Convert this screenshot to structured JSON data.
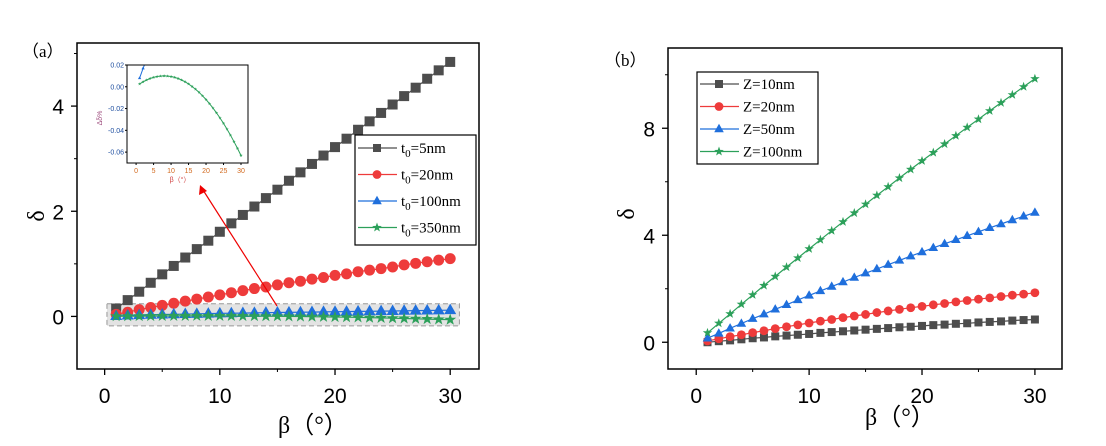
{
  "chart_data": [
    {
      "type": "line",
      "panel_label": "（a）",
      "xlabel": "β（°）",
      "ylabel": "δ",
      "xlim": [
        -2.4,
        32.5
      ],
      "ylim": [
        -1.0,
        5.2
      ],
      "xticks": [
        0,
        10,
        20,
        30
      ],
      "yticks": [
        0,
        2,
        4
      ],
      "grid": false,
      "legend_placement": "right",
      "x": [
        1,
        2,
        3,
        4,
        5,
        6,
        7,
        8,
        9,
        10,
        11,
        12,
        13,
        14,
        15,
        16,
        17,
        18,
        19,
        20,
        21,
        22,
        23,
        24,
        25,
        26,
        27,
        28,
        29,
        30
      ],
      "series": [
        {
          "name": "t0=5nm",
          "name_main": "t",
          "name_sub": "0",
          "name_rest": "=5nm",
          "color": "#4d4d4d",
          "marker": "square",
          "values": [
            0.15,
            0.31,
            0.47,
            0.64,
            0.8,
            0.96,
            1.12,
            1.28,
            1.44,
            1.61,
            1.77,
            1.93,
            2.09,
            2.25,
            2.41,
            2.58,
            2.74,
            2.9,
            3.06,
            3.22,
            3.38,
            3.55,
            3.71,
            3.87,
            4.03,
            4.19,
            4.35,
            4.52,
            4.68,
            4.84
          ]
        },
        {
          "name": "t0=20nm",
          "name_main": "t",
          "name_sub": "0",
          "name_rest": "=20nm",
          "color": "#ee3b3b",
          "marker": "circle",
          "values": [
            0.04,
            0.08,
            0.13,
            0.17,
            0.21,
            0.25,
            0.29,
            0.33,
            0.37,
            0.41,
            0.45,
            0.49,
            0.53,
            0.56,
            0.6,
            0.64,
            0.67,
            0.71,
            0.74,
            0.78,
            0.81,
            0.85,
            0.88,
            0.91,
            0.94,
            0.98,
            1.01,
            1.04,
            1.07,
            1.1
          ]
        },
        {
          "name": "t0=100nm",
          "name_main": "t",
          "name_sub": "0",
          "name_rest": "=100nm",
          "color": "#1f6fdc",
          "marker": "triangle",
          "values": [
            0.008,
            0.017,
            0.025,
            0.032,
            0.037,
            0.041,
            0.045,
            0.049,
            0.053,
            0.057,
            0.061,
            0.064,
            0.067,
            0.071,
            0.074,
            0.077,
            0.08,
            0.083,
            0.086,
            0.089,
            0.092,
            0.095,
            0.098,
            0.101,
            0.104,
            0.107,
            0.11,
            0.113,
            0.116,
            0.119
          ]
        },
        {
          "name": "t0=350nm",
          "name_main": "t",
          "name_sub": "0",
          "name_rest": "=350nm",
          "color": "#2ca05a",
          "marker": "star",
          "values": [
            0.0026,
            0.0046,
            0.0062,
            0.0076,
            0.0086,
            0.0094,
            0.0098,
            0.01,
            0.0098,
            0.0094,
            0.0086,
            0.0076,
            0.0062,
            0.0046,
            0.0026,
            0.0003,
            -0.0022,
            -0.0051,
            -0.0083,
            -0.0117,
            -0.0155,
            -0.0196,
            -0.024,
            -0.0287,
            -0.0336,
            -0.0389,
            -0.0445,
            -0.0504,
            -0.0566,
            -0.0631
          ]
        }
      ],
      "highlight_region": {
        "x": [
          0.2,
          30.8
        ],
        "y": [
          -0.18,
          0.24
        ]
      },
      "inset": {
        "xlabel": "β（°）",
        "ylabel": "Δδ%",
        "xlim": [
          -2.6,
          32
        ],
        "ylim": [
          -0.07,
          0.02
        ],
        "xticks": [
          0,
          5,
          10,
          15,
          20,
          25,
          30
        ],
        "yticks": [
          0.02,
          0.0,
          -0.02,
          -0.04,
          -0.06
        ],
        "ytick_labels": [
          "0.02",
          "0.00",
          "-0.02",
          "-0.04",
          "-0.06"
        ],
        "series_shown": [
          "t0=100nm",
          "t0=350nm"
        ]
      }
    },
    {
      "type": "line",
      "panel_label": "（b）",
      "xlabel": "β（°）",
      "ylabel": "δ",
      "xlim": [
        -2.5,
        32.4
      ],
      "ylim": [
        -1.0,
        11.0
      ],
      "xticks": [
        0,
        10,
        20,
        30
      ],
      "yticks": [
        0,
        4,
        8
      ],
      "grid": false,
      "legend_placement": "top-left",
      "x": [
        1,
        2,
        3,
        4,
        5,
        6,
        7,
        8,
        9,
        10,
        11,
        12,
        13,
        14,
        15,
        16,
        17,
        18,
        19,
        20,
        21,
        22,
        23,
        24,
        25,
        26,
        27,
        28,
        29,
        30
      ],
      "series": [
        {
          "name": "Z=10nm",
          "color": "#4d4d4d",
          "marker": "square",
          "values": [
            0.0,
            0.04,
            0.07,
            0.11,
            0.15,
            0.18,
            0.22,
            0.25,
            0.28,
            0.31,
            0.35,
            0.38,
            0.41,
            0.44,
            0.47,
            0.5,
            0.53,
            0.56,
            0.58,
            0.61,
            0.64,
            0.66,
            0.69,
            0.71,
            0.74,
            0.76,
            0.78,
            0.81,
            0.83,
            0.85
          ]
        },
        {
          "name": "Z=20nm",
          "color": "#ee3b3b",
          "marker": "circle",
          "values": [
            0.05,
            0.13,
            0.21,
            0.28,
            0.36,
            0.43,
            0.51,
            0.58,
            0.65,
            0.72,
            0.79,
            0.85,
            0.92,
            0.98,
            1.04,
            1.11,
            1.17,
            1.23,
            1.29,
            1.34,
            1.4,
            1.45,
            1.51,
            1.56,
            1.61,
            1.66,
            1.71,
            1.76,
            1.8,
            1.85
          ]
        },
        {
          "name": "Z=50nm",
          "color": "#1f6fdc",
          "marker": "triangle",
          "values": [
            0.15,
            0.33,
            0.52,
            0.7,
            0.88,
            1.05,
            1.23,
            1.4,
            1.58,
            1.75,
            1.92,
            2.08,
            2.25,
            2.42,
            2.58,
            2.74,
            2.9,
            3.06,
            3.22,
            3.37,
            3.53,
            3.68,
            3.83,
            3.98,
            4.13,
            4.28,
            4.42,
            4.57,
            4.71,
            4.85
          ]
        },
        {
          "name": "Z=100nm",
          "color": "#2ca05a",
          "marker": "star",
          "values": [
            0.35,
            0.71,
            1.06,
            1.42,
            1.77,
            2.12,
            2.46,
            2.81,
            3.15,
            3.49,
            3.83,
            4.17,
            4.5,
            4.83,
            5.16,
            5.49,
            5.81,
            6.14,
            6.46,
            6.78,
            7.09,
            7.41,
            7.72,
            8.03,
            8.34,
            8.65,
            8.95,
            9.25,
            9.55,
            9.85
          ]
        }
      ]
    }
  ]
}
